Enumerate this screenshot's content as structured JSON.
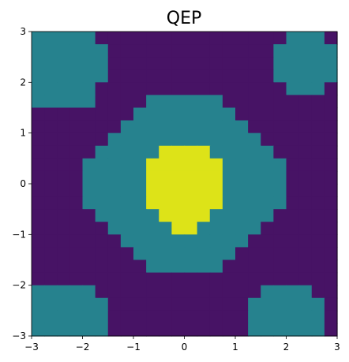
{
  "chart_data": {
    "type": "contourf",
    "title": "QEP",
    "xlim": [
      -3,
      3
    ],
    "ylim": [
      -3,
      3
    ],
    "xticks": [
      {
        "value": -3,
        "label": "−3"
      },
      {
        "value": -2,
        "label": "−2"
      },
      {
        "value": -1,
        "label": "−1"
      },
      0,
      1,
      2,
      3
    ],
    "yticks": [
      {
        "value": -3,
        "label": "−3"
      },
      {
        "value": -2,
        "label": "−2"
      },
      {
        "value": -1,
        "label": "−1"
      },
      0,
      1,
      2,
      3
    ],
    "colors": [
      "#471365",
      "#26828e",
      "#dde318"
    ],
    "z": [
      [
        1,
        1,
        1,
        1,
        1,
        0,
        0,
        0,
        0,
        0,
        0,
        0,
        0,
        0,
        0,
        0,
        0,
        0,
        0,
        0,
        1,
        1,
        1,
        0
      ],
      [
        1,
        1,
        1,
        1,
        1,
        1,
        0,
        0,
        0,
        0,
        0,
        0,
        0,
        0,
        0,
        0,
        0,
        0,
        0,
        1,
        1,
        1,
        1,
        1
      ],
      [
        1,
        1,
        1,
        1,
        1,
        1,
        0,
        0,
        0,
        0,
        0,
        0,
        0,
        0,
        0,
        0,
        0,
        0,
        0,
        1,
        1,
        1,
        1,
        1
      ],
      [
        1,
        1,
        1,
        1,
        1,
        1,
        0,
        0,
        0,
        0,
        0,
        0,
        0,
        0,
        0,
        0,
        0,
        0,
        0,
        1,
        1,
        1,
        1,
        1
      ],
      [
        1,
        1,
        1,
        1,
        1,
        0,
        0,
        0,
        0,
        0,
        0,
        0,
        0,
        0,
        0,
        0,
        0,
        0,
        0,
        0,
        1,
        1,
        1,
        0
      ],
      [
        1,
        1,
        1,
        1,
        1,
        0,
        0,
        0,
        0,
        1,
        1,
        1,
        1,
        1,
        1,
        0,
        0,
        0,
        0,
        0,
        0,
        0,
        0,
        0
      ],
      [
        0,
        0,
        0,
        0,
        0,
        0,
        0,
        0,
        1,
        1,
        1,
        1,
        1,
        1,
        1,
        1,
        0,
        0,
        0,
        0,
        0,
        0,
        0,
        0
      ],
      [
        0,
        0,
        0,
        0,
        0,
        0,
        0,
        1,
        1,
        1,
        1,
        1,
        1,
        1,
        1,
        1,
        1,
        0,
        0,
        0,
        0,
        0,
        0,
        0
      ],
      [
        0,
        0,
        0,
        0,
        0,
        0,
        1,
        1,
        1,
        1,
        1,
        1,
        1,
        1,
        1,
        1,
        1,
        1,
        0,
        0,
        0,
        0,
        0,
        0
      ],
      [
        0,
        0,
        0,
        0,
        0,
        1,
        1,
        1,
        1,
        1,
        2,
        2,
        2,
        2,
        1,
        1,
        1,
        1,
        1,
        0,
        0,
        0,
        0,
        0
      ],
      [
        0,
        0,
        0,
        0,
        1,
        1,
        1,
        1,
        1,
        2,
        2,
        2,
        2,
        2,
        2,
        1,
        1,
        1,
        1,
        1,
        0,
        0,
        0,
        0
      ],
      [
        0,
        0,
        0,
        0,
        1,
        1,
        1,
        1,
        1,
        2,
        2,
        2,
        2,
        2,
        2,
        1,
        1,
        1,
        1,
        1,
        0,
        0,
        0,
        0
      ],
      [
        0,
        0,
        0,
        0,
        1,
        1,
        1,
        1,
        1,
        2,
        2,
        2,
        2,
        2,
        2,
        1,
        1,
        1,
        1,
        1,
        0,
        0,
        0,
        0
      ],
      [
        0,
        0,
        0,
        0,
        1,
        1,
        1,
        1,
        1,
        2,
        2,
        2,
        2,
        2,
        2,
        1,
        1,
        1,
        1,
        1,
        0,
        0,
        0,
        0
      ],
      [
        0,
        0,
        0,
        0,
        0,
        1,
        1,
        1,
        1,
        1,
        2,
        2,
        2,
        2,
        1,
        1,
        1,
        1,
        1,
        0,
        0,
        0,
        0,
        0
      ],
      [
        0,
        0,
        0,
        0,
        0,
        0,
        1,
        1,
        1,
        1,
        1,
        2,
        2,
        1,
        1,
        1,
        1,
        1,
        0,
        0,
        0,
        0,
        0,
        0
      ],
      [
        0,
        0,
        0,
        0,
        0,
        0,
        0,
        1,
        1,
        1,
        1,
        1,
        1,
        1,
        1,
        1,
        1,
        0,
        0,
        0,
        0,
        0,
        0,
        0
      ],
      [
        0,
        0,
        0,
        0,
        0,
        0,
        0,
        0,
        1,
        1,
        1,
        1,
        1,
        1,
        1,
        1,
        0,
        0,
        0,
        0,
        0,
        0,
        0,
        0
      ],
      [
        0,
        0,
        0,
        0,
        0,
        0,
        0,
        0,
        0,
        1,
        1,
        1,
        1,
        1,
        1,
        0,
        0,
        0,
        0,
        0,
        0,
        0,
        0,
        0
      ],
      [
        0,
        0,
        0,
        0,
        0,
        0,
        0,
        0,
        0,
        0,
        0,
        0,
        0,
        0,
        0,
        0,
        0,
        0,
        0,
        0,
        0,
        0,
        0,
        0
      ],
      [
        1,
        1,
        1,
        1,
        1,
        0,
        0,
        0,
        0,
        0,
        0,
        0,
        0,
        0,
        0,
        0,
        0,
        0,
        1,
        1,
        1,
        1,
        0,
        0
      ],
      [
        1,
        1,
        1,
        1,
        1,
        1,
        0,
        0,
        0,
        0,
        0,
        0,
        0,
        0,
        0,
        0,
        0,
        1,
        1,
        1,
        1,
        1,
        1,
        0
      ],
      [
        1,
        1,
        1,
        1,
        1,
        1,
        0,
        0,
        0,
        0,
        0,
        0,
        0,
        0,
        0,
        0,
        0,
        1,
        1,
        1,
        1,
        1,
        1,
        0
      ],
      [
        1,
        1,
        1,
        1,
        1,
        1,
        0,
        0,
        0,
        0,
        0,
        0,
        0,
        0,
        0,
        0,
        0,
        1,
        1,
        1,
        1,
        1,
        1,
        0
      ]
    ]
  }
}
